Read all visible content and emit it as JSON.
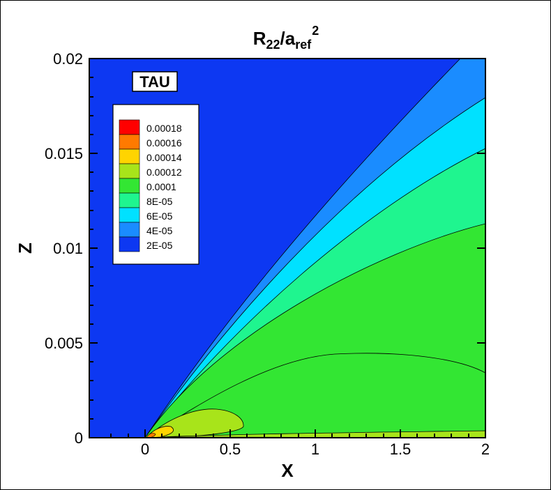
{
  "title": {
    "main": "R",
    "sub1": "22",
    "slash": "/a",
    "sub2": "ref",
    "sup": "2"
  },
  "chart_data": {
    "type": "heatmap",
    "subtype": "filled contour",
    "xlabel": "X",
    "ylabel": "Z",
    "xlim": [
      -0.33,
      2.0
    ],
    "ylim": [
      0,
      0.02
    ],
    "xticks": [
      "0",
      "0.5",
      "1",
      "1.5",
      "2"
    ],
    "xtick_values": [
      0,
      0.5,
      1,
      1.5,
      2
    ],
    "yticks": [
      "0",
      "0.005",
      "0.01",
      "0.015",
      "0.02"
    ],
    "ytick_values": [
      0,
      0.005,
      0.01,
      0.015,
      0.02
    ],
    "annotation": "TAU",
    "legend_placement": "top-left",
    "levels": [
      {
        "label": "0.00018",
        "value": 0.00018,
        "color": "#ff0000"
      },
      {
        "label": "0.00016",
        "value": 0.00016,
        "color": "#ff7a00"
      },
      {
        "label": "0.00014",
        "value": 0.00014,
        "color": "#ffd400"
      },
      {
        "label": "0.00012",
        "value": 0.00012,
        "color": "#a8e41a"
      },
      {
        "label": "0.0001",
        "value": 0.0001,
        "color": "#33e633"
      },
      {
        "label": "8E-05",
        "value": 8e-05,
        "color": "#1ff58f"
      },
      {
        "label": "6E-05",
        "value": 6e-05,
        "color": "#00e1ff"
      },
      {
        "label": "4E-05",
        "value": 4e-05,
        "color": "#1a8cff"
      },
      {
        "label": "2E-05",
        "value": 2e-05,
        "color": "#0d38f2"
      }
    ],
    "background_color": "#0d38f2",
    "grid": false
  }
}
